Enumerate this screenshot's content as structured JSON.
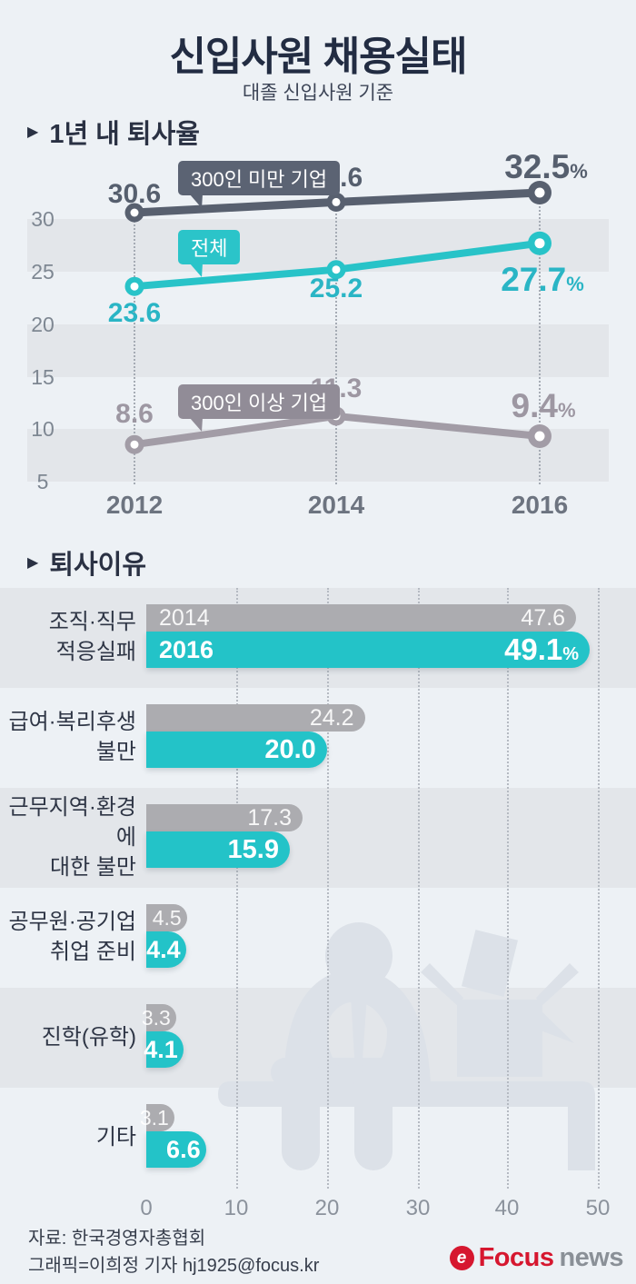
{
  "page": {
    "title": "신입사원 채용실태",
    "subtitle": "대졸 신입사원 기준"
  },
  "sections": {
    "marker": "▶",
    "rate": "1년 내 퇴사율",
    "reason": "퇴사이유"
  },
  "line_chart": {
    "yticks": [
      "30",
      "25",
      "20",
      "15",
      "10",
      "5"
    ],
    "x_labels": [
      "2012",
      "2014",
      "2016"
    ],
    "callouts": {
      "under300": "300인 미만 기업",
      "total": "전체",
      "over300": "300인 이상 기업"
    },
    "labels": {
      "under300": {
        "v1": "30.6",
        "v2": "31.6",
        "v3": "32.5",
        "pct": "%"
      },
      "total": {
        "v1": "23.6",
        "v2": "25.2",
        "v3": "27.7",
        "pct": "%"
      },
      "over300": {
        "v1": "8.6",
        "v2": "11.3",
        "v3": "9.4",
        "pct": "%"
      }
    }
  },
  "bar_chart": {
    "xticks": [
      "0",
      "10",
      "20",
      "30",
      "40",
      "50"
    ],
    "rows": [
      {
        "label1": "조직·직무",
        "label2": "적응실패",
        "y2014": "2014",
        "y2016": "2016",
        "v2014": "47.6",
        "v2016": "49.1",
        "pct": "%"
      },
      {
        "label1": "급여·복리후생",
        "label2": "불만",
        "v2014": "24.2",
        "v2016": "20.0"
      },
      {
        "label1": "근무지역·환경에",
        "label2": "대한 불만",
        "v2014": "17.3",
        "v2016": "15.9"
      },
      {
        "label1": "공무원·공기업",
        "label2": "취업 준비",
        "v2014": "4.5",
        "v2016": "4.4"
      },
      {
        "label1": "진학(유학)",
        "v2014": "3.3",
        "v2016": "4.1"
      },
      {
        "label1": "기타",
        "v2014": "3.1",
        "v2016": "6.6"
      }
    ]
  },
  "footer": {
    "source": "자료: 한국경영자총협회",
    "credit": "그래픽=이희정 기자 hj1925@focus.kr",
    "logo_icon": "e",
    "logo_focus": "Focus",
    "logo_news": "news"
  },
  "colors": {
    "background": "#edf1f5",
    "band": "#e3e6ea",
    "navy": "#222c42",
    "dark_slate": "#58606f",
    "teal": "#23c3c8",
    "light_gray": "#a29ca6",
    "bar_gray": "#acacb0",
    "red": "#d6172f"
  },
  "chart_data": [
    {
      "type": "line",
      "title": "1년 내 퇴사율",
      "subtitle": "대졸 신입사원 기준",
      "x": [
        2012,
        2014,
        2016
      ],
      "series": [
        {
          "name": "300인 미만 기업",
          "values": [
            30.6,
            31.6,
            32.5
          ],
          "color": "#58606f"
        },
        {
          "name": "전체",
          "values": [
            23.6,
            25.2,
            27.7
          ],
          "color": "#28c3c8"
        },
        {
          "name": "300인 이상 기업",
          "values": [
            8.6,
            11.3,
            9.4
          ],
          "color": "#a29ca6"
        }
      ],
      "unit": "%",
      "ylim": [
        5,
        33
      ],
      "yticks": [
        30,
        25,
        20,
        15,
        10,
        5
      ],
      "grid": "horizontal-bands",
      "legend_position": "inline-callouts"
    },
    {
      "type": "bar",
      "title": "퇴사이유",
      "orientation": "horizontal",
      "categories": [
        "조직·직무 적응실패",
        "급여·복리후생 불만",
        "근무지역·환경에 대한 불만",
        "공무원·공기업 취업 준비",
        "진학(유학)",
        "기타"
      ],
      "series": [
        {
          "name": "2014",
          "values": [
            47.6,
            24.2,
            17.3,
            4.5,
            3.3,
            3.1
          ],
          "color": "#acacb0"
        },
        {
          "name": "2016",
          "values": [
            49.1,
            20.0,
            15.9,
            4.4,
            4.1,
            6.6
          ],
          "color": "#23c3c8"
        }
      ],
      "unit": "%",
      "xlim": [
        0,
        50
      ],
      "xticks": [
        0,
        10,
        20,
        30,
        40,
        50
      ],
      "grid": "vertical-dotted"
    }
  ]
}
